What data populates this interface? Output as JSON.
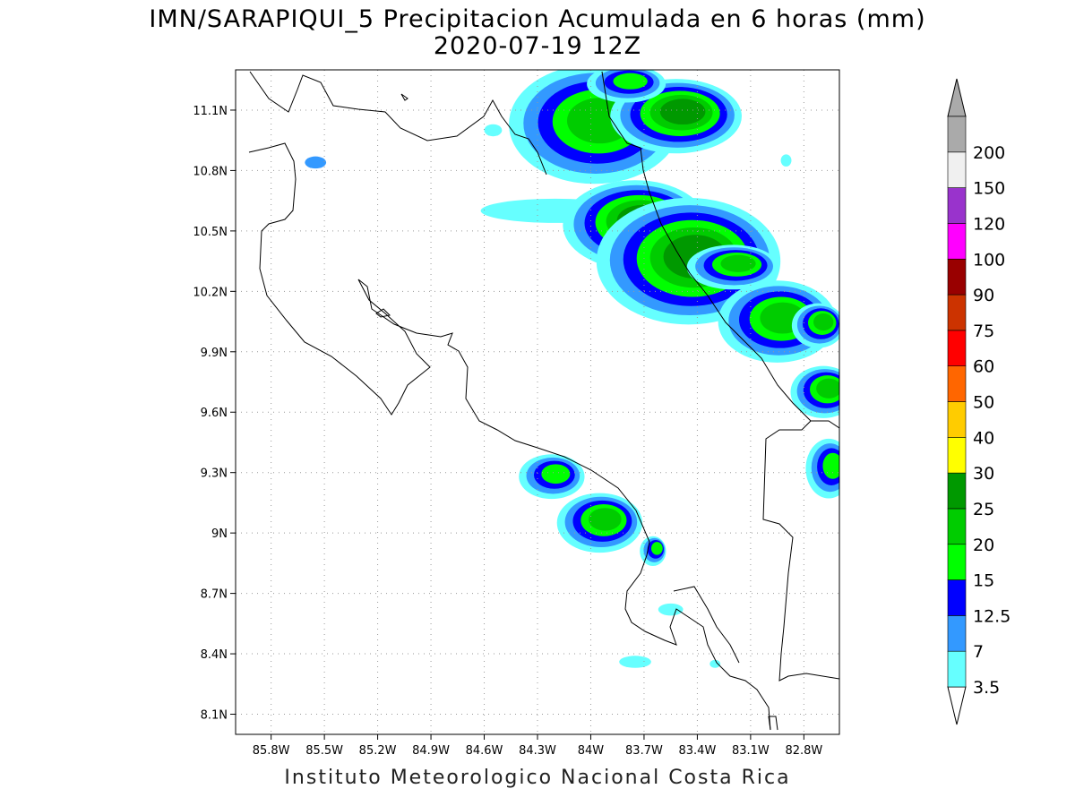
{
  "title_line1": "IMN/SARAPIQUI_5 Precipitacion Acumulada en 6 horas (mm)",
  "title_line2": "2020-07-19 12Z",
  "footer": "Instituto Meteorologico Nacional Costa Rica",
  "map": {
    "lon_range": [
      -86.0,
      -82.6
    ],
    "lat_range": [
      8.0,
      11.3
    ],
    "lon_ticks": [
      {
        "value": -85.8,
        "label": "85.8W"
      },
      {
        "value": -85.5,
        "label": "85.5W"
      },
      {
        "value": -85.2,
        "label": "85.2W"
      },
      {
        "value": -84.9,
        "label": "84.9W"
      },
      {
        "value": -84.6,
        "label": "84.6W"
      },
      {
        "value": -84.3,
        "label": "84.3W"
      },
      {
        "value": -84.0,
        "label": "84W"
      },
      {
        "value": -83.7,
        "label": "83.7W"
      },
      {
        "value": -83.4,
        "label": "83.4W"
      },
      {
        "value": -83.1,
        "label": "83.1W"
      },
      {
        "value": -82.8,
        "label": "82.8W"
      }
    ],
    "lat_ticks": [
      {
        "value": 11.1,
        "label": "11.1N"
      },
      {
        "value": 10.8,
        "label": "10.8N"
      },
      {
        "value": 10.5,
        "label": "10.5N"
      },
      {
        "value": 10.2,
        "label": "10.2N"
      },
      {
        "value": 9.9,
        "label": "9.9N"
      },
      {
        "value": 9.6,
        "label": "9.6N"
      },
      {
        "value": 9.3,
        "label": "9.3N"
      },
      {
        "value": 9.0,
        "label": "9N"
      },
      {
        "value": 8.7,
        "label": "8.7N"
      },
      {
        "value": 8.4,
        "label": "8.4N"
      },
      {
        "value": 8.1,
        "label": "8.1N"
      }
    ],
    "grid": "dotted",
    "precipitation_cells": [
      {
        "lon": -83.98,
        "lat": 11.03,
        "rlon": 0.26,
        "rlat": 0.16,
        "mm": 20
      },
      {
        "lon": -83.52,
        "lat": 11.07,
        "rlon": 0.2,
        "rlat": 0.1,
        "mm": 25
      },
      {
        "lon": -83.8,
        "lat": 11.23,
        "rlon": 0.12,
        "rlat": 0.05,
        "mm": 15
      },
      {
        "lon": -83.75,
        "lat": 10.53,
        "rlon": 0.22,
        "rlat": 0.12,
        "mm": 25
      },
      {
        "lon": -83.45,
        "lat": 10.35,
        "rlon": 0.28,
        "rlat": 0.17,
        "mm": 25
      },
      {
        "lon": -83.2,
        "lat": 10.32,
        "rlon": 0.14,
        "rlat": 0.06,
        "mm": 20
      },
      {
        "lon": -82.95,
        "lat": 10.05,
        "rlon": 0.18,
        "rlat": 0.11,
        "mm": 20
      },
      {
        "lon": -82.72,
        "lat": 10.03,
        "rlon": 0.08,
        "rlat": 0.06,
        "mm": 20
      },
      {
        "lon": -82.69,
        "lat": 9.7,
        "rlon": 0.1,
        "rlat": 0.07,
        "mm": 20
      },
      {
        "lon": -82.66,
        "lat": 9.32,
        "rlon": 0.07,
        "rlat": 0.08,
        "mm": 15
      },
      {
        "lon": -84.22,
        "lat": 9.28,
        "rlon": 0.1,
        "rlat": 0.06,
        "mm": 15
      },
      {
        "lon": -83.95,
        "lat": 9.05,
        "rlon": 0.13,
        "rlat": 0.08,
        "mm": 20
      },
      {
        "lon": -83.65,
        "lat": 8.91,
        "rlon": 0.04,
        "rlat": 0.04,
        "mm": 15
      }
    ],
    "light_rain_bands": [
      {
        "lon": -84.2,
        "lat": 10.6,
        "rlon": 0.42,
        "rlat": 0.06,
        "mm": 3.5
      },
      {
        "lon": -85.55,
        "lat": 10.84,
        "rlon": 0.06,
        "rlat": 0.03,
        "mm": 7
      },
      {
        "lon": -84.55,
        "lat": 11.0,
        "rlon": 0.05,
        "rlat": 0.03,
        "mm": 3.5
      },
      {
        "lon": -83.55,
        "lat": 8.62,
        "rlon": 0.07,
        "rlat": 0.03,
        "mm": 3.5
      },
      {
        "lon": -83.75,
        "lat": 8.36,
        "rlon": 0.09,
        "rlat": 0.03,
        "mm": 3.5
      },
      {
        "lon": -83.3,
        "lat": 8.35,
        "rlon": 0.03,
        "rlat": 0.02,
        "mm": 3.5
      },
      {
        "lon": -82.9,
        "lat": 10.85,
        "rlon": 0.03,
        "rlat": 0.03,
        "mm": 3.5
      }
    ]
  },
  "colorbar": {
    "levels": [
      {
        "label": "3.5",
        "color": "#66ffff"
      },
      {
        "label": "7",
        "color": "#3399ff"
      },
      {
        "label": "12.5",
        "color": "#0000ff"
      },
      {
        "label": "15",
        "color": "#00ff00"
      },
      {
        "label": "20",
        "color": "#00cc00"
      },
      {
        "label": "25",
        "color": "#009900"
      },
      {
        "label": "30",
        "color": "#ffff00"
      },
      {
        "label": "40",
        "color": "#ffcc00"
      },
      {
        "label": "50",
        "color": "#ff6600"
      },
      {
        "label": "60",
        "color": "#ff0000"
      },
      {
        "label": "75",
        "color": "#cc3300"
      },
      {
        "label": "90",
        "color": "#990000"
      },
      {
        "label": "100",
        "color": "#ff00ff"
      },
      {
        "label": "120",
        "color": "#9933cc"
      },
      {
        "label": "150",
        "color": "#f0f0f0"
      },
      {
        "label": "200",
        "color": "#aaaaaa"
      }
    ]
  }
}
